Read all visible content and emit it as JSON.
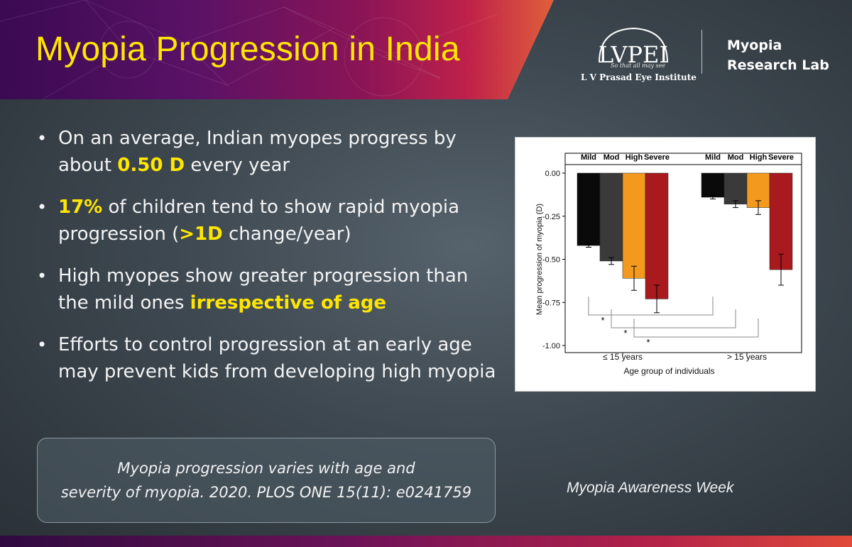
{
  "title": "Myopia Progression in India",
  "logo": {
    "mark": "LVPEI",
    "tagline": "So that all may see",
    "institute": "L V Prasad Eye Institute",
    "lab": "Myopia\nResearch Lab"
  },
  "bullets": [
    {
      "segments": [
        {
          "text": "On an average, Indian myopes progress by about "
        },
        {
          "text": "0.50 D",
          "hl": true
        },
        {
          "text": " every year"
        }
      ]
    },
    {
      "segments": [
        {
          "text": "17%",
          "hl": true
        },
        {
          "text": " of children tend to show rapid myopia progression ("
        },
        {
          "text": ">1D",
          "hl": true
        },
        {
          "text": " change/year)"
        }
      ]
    },
    {
      "segments": [
        {
          "text": "High myopes show greater progression than the mild ones "
        },
        {
          "text": "irrespective of age",
          "hl": true
        }
      ]
    },
    {
      "segments": [
        {
          "text": "Efforts to control progression at an early age may prevent kids from developing high myopia"
        }
      ]
    }
  ],
  "citation": {
    "line1": "Myopia progression varies with age and",
    "line2": "severity of myopia. 2020. PLOS ONE 15(11): e0241759"
  },
  "footer": "Myopia Awareness Week",
  "colors": {
    "title": "#ffe600",
    "highlight": "#ffe600",
    "series": [
      "#0a0a0a",
      "#3a3a3a",
      "#f39a1e",
      "#a81a1e"
    ]
  },
  "chart_data": {
    "type": "bar",
    "xlabel": "Age group of individuals",
    "ylabel": "Mean progression of myopia (D)",
    "ylim": [
      -1.0,
      0.0
    ],
    "yticks": [
      "0.00",
      "-0.25",
      "-0.50",
      "-0.75",
      "-1.00"
    ],
    "categories": [
      "≤ 15 years",
      "> 15 years"
    ],
    "series": [
      {
        "name": "Mild",
        "values": [
          -0.42,
          -0.14
        ],
        "errors": [
          0.01,
          0.01
        ]
      },
      {
        "name": "Mod",
        "values": [
          -0.51,
          -0.18
        ],
        "errors": [
          0.02,
          0.02
        ]
      },
      {
        "name": "High",
        "values": [
          -0.61,
          -0.2
        ],
        "errors": [
          0.07,
          0.04
        ]
      },
      {
        "name": "Severe",
        "values": [
          -0.73,
          -0.56
        ],
        "errors": [
          0.08,
          0.09
        ]
      }
    ],
    "significance_marker": "*",
    "comparisons": [
      {
        "label": "*",
        "from": [
          "≤ 15 years",
          "Mild"
        ],
        "to": [
          "> 15 years",
          "Mild"
        ]
      },
      {
        "label": "*",
        "from": [
          "≤ 15 years",
          "Mod"
        ],
        "to": [
          "> 15 years",
          "Mod"
        ]
      },
      {
        "label": "*",
        "from": [
          "≤ 15 years",
          "High"
        ],
        "to": [
          "> 15 years",
          "High"
        ]
      }
    ],
    "legend_placement": "top strip above each group",
    "grid": false
  }
}
